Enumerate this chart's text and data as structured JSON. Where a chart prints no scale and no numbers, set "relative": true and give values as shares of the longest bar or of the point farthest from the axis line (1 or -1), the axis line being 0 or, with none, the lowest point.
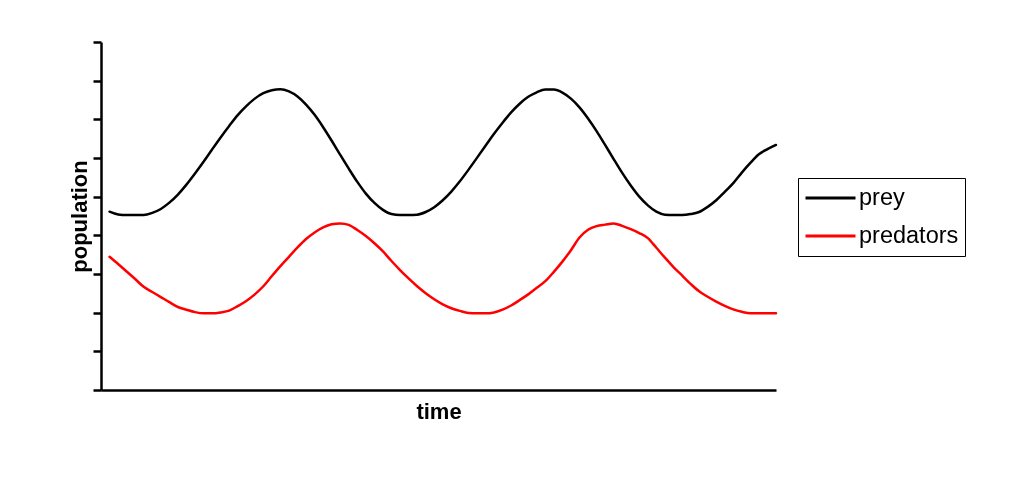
{
  "chart_data": {
    "type": "line",
    "relative": true,
    "xlabel": "time",
    "ylabel": "population",
    "legend": "right",
    "categories": [
      null,
      null,
      null,
      null,
      null,
      null,
      null,
      null,
      null,
      null,
      null,
      null,
      null,
      null,
      null,
      null,
      null,
      null,
      null,
      null,
      null,
      null,
      null,
      null,
      null,
      null,
      null,
      null,
      null,
      null,
      null,
      null,
      null,
      null,
      null,
      null,
      null,
      null,
      null,
      null,
      null,
      null,
      null,
      null,
      null,
      null,
      null,
      null,
      null,
      null,
      null,
      null,
      null,
      null,
      null,
      null,
      null,
      null,
      null,
      null,
      null,
      null,
      null,
      null,
      null,
      null,
      null,
      null,
      null,
      null,
      null,
      null,
      null,
      null,
      null,
      null,
      null,
      null,
      null,
      null
    ],
    "series": [
      {
        "name": "prey",
        "color": "#000000",
        "values": [
          null,
          0.593,
          0.584,
          0.582,
          0.582,
          0.582,
          0.589,
          0.602,
          0.623,
          0.65,
          0.683,
          0.72,
          0.759,
          0.8,
          0.84,
          0.878,
          0.914,
          0.944,
          0.969,
          0.987,
          0.997,
          1,
          0.993,
          0.976,
          0.949,
          0.915,
          0.874,
          0.829,
          0.782,
          0.736,
          0.692,
          0.653,
          0.622,
          0.599,
          0.585,
          0.582,
          0.582,
          0.583,
          0.592,
          0.608,
          0.631,
          0.66,
          0.694,
          0.732,
          0.772,
          0.812,
          0.852,
          0.889,
          0.923,
          0.952,
          0.975,
          0.99,
          0.999,
          0.999,
          0.989,
          0.969,
          0.94,
          0.903,
          0.861,
          0.815,
          0.768,
          0.722,
          0.68,
          0.643,
          0.614,
          0.593,
          0.583,
          0.582,
          0.582,
          0.585,
          0.592,
          0.609,
          0.631,
          0.659,
          0.688,
          0.723,
          0.755,
          0.784,
          0.801,
          0.815
        ]
      },
      {
        "name": "predators",
        "color": "#ff0000",
        "values": [
          null,
          0.443,
          0.419,
          0.394,
          0.369,
          0.343,
          0.326,
          0.309,
          0.292,
          0.276,
          0.267,
          0.259,
          0.255,
          0.255,
          0.258,
          0.264,
          0.279,
          0.296,
          0.318,
          0.345,
          0.379,
          0.412,
          0.443,
          0.474,
          0.502,
          0.524,
          0.541,
          0.551,
          0.554,
          0.549,
          0.532,
          0.512,
          0.488,
          0.461,
          0.429,
          0.399,
          0.371,
          0.345,
          0.322,
          0.302,
          0.285,
          0.272,
          0.263,
          0.256,
          0.255,
          0.255,
          0.258,
          0.267,
          0.281,
          0.299,
          0.318,
          0.34,
          0.362,
          0.393,
          0.427,
          0.465,
          0.507,
          0.533,
          0.545,
          0.55,
          0.554,
          0.546,
          0.535,
          0.522,
          0.505,
          0.473,
          0.44,
          0.409,
          0.381,
          0.353,
          0.328,
          0.31,
          0.294,
          0.28,
          0.268,
          0.26,
          0.255,
          0.255,
          0.255,
          0.255
        ]
      }
    ]
  }
}
